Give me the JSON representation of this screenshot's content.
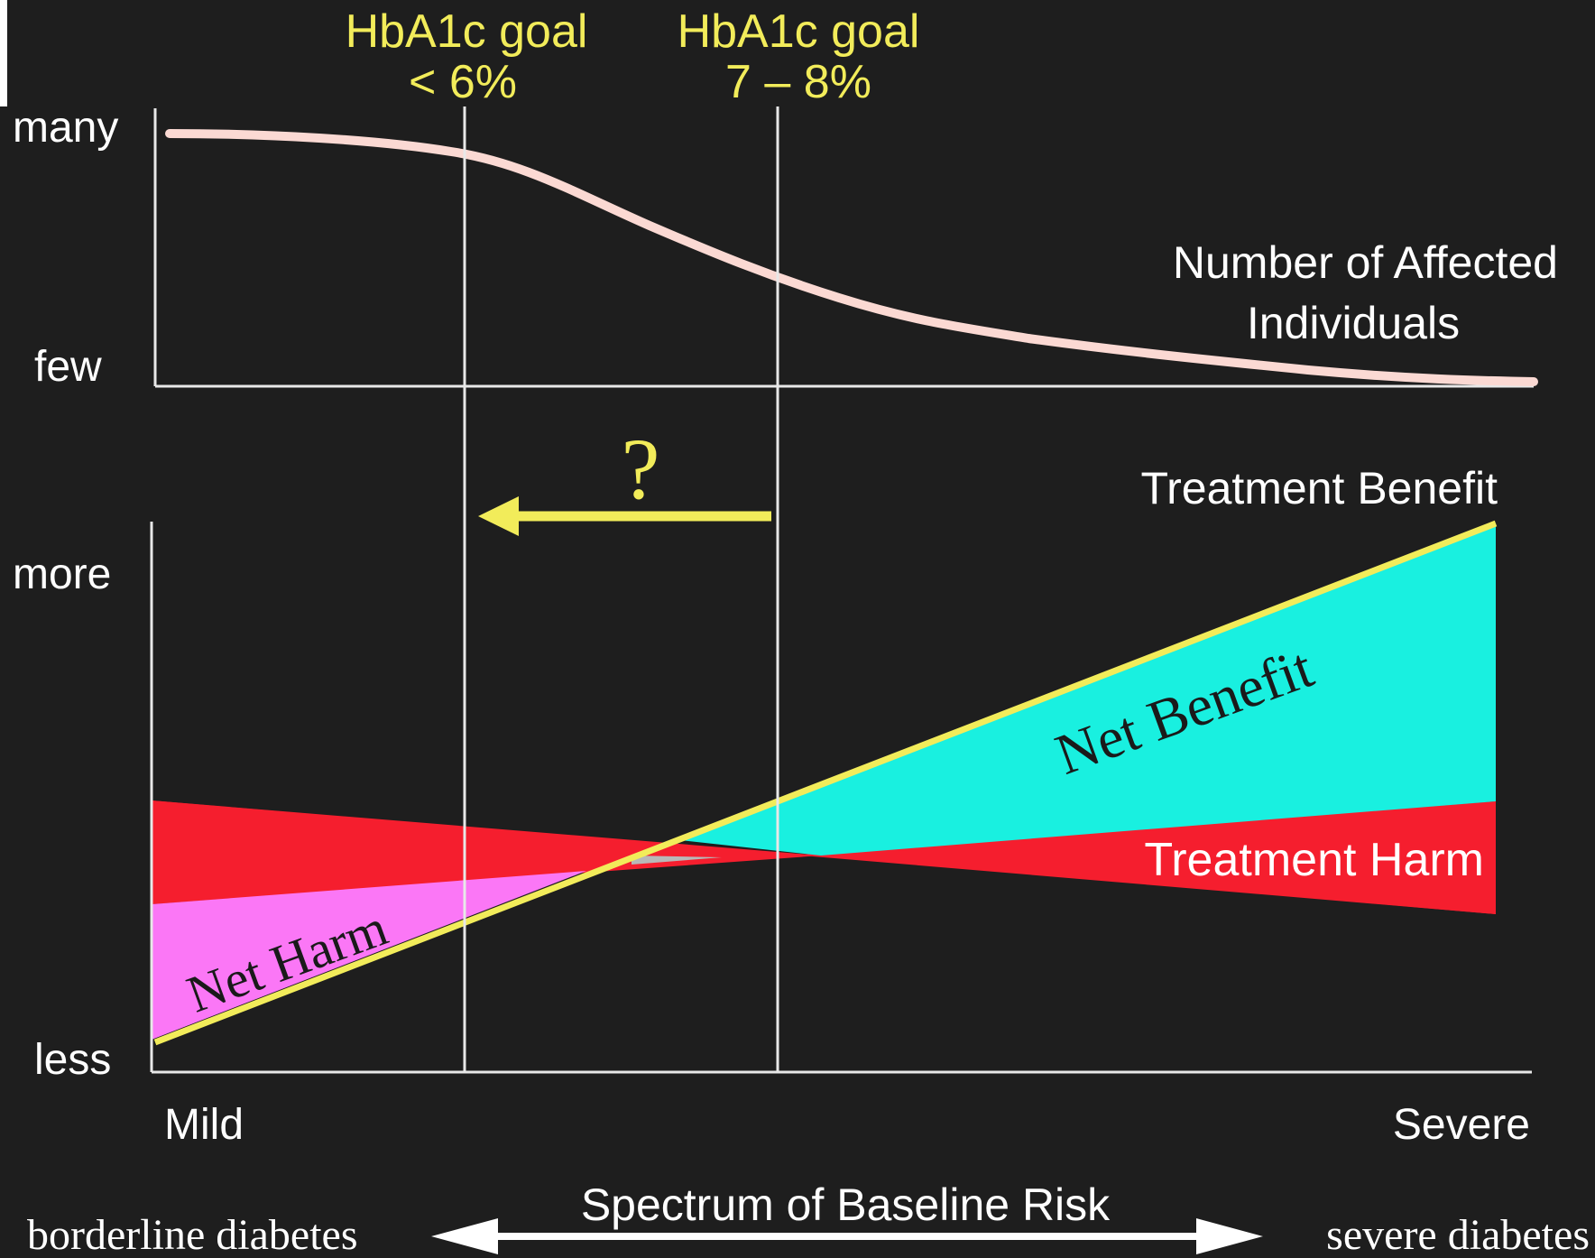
{
  "goals": {
    "goal_a_title": "HbA1c goal",
    "goal_a_value": "< 6%",
    "goal_b_title": "HbA1c goal",
    "goal_b_value": "7 – 8%"
  },
  "top_panel": {
    "y_high": "many",
    "y_low": "few",
    "curve_label_line1": "Number of Affected",
    "curve_label_line2": "Individuals"
  },
  "middle": {
    "question_mark": "?"
  },
  "bottom_panel": {
    "y_high": "more",
    "y_low": "less",
    "benefit_label": "Treatment Benefit",
    "harm_label": "Treatment Harm",
    "net_benefit_label": "Net Benefit",
    "net_harm_label": "Net Harm"
  },
  "x_axis": {
    "left": "Mild",
    "right": "Severe",
    "title": "Spectrum of Baseline Risk",
    "left_note": "borderline diabetes",
    "right_note": "severe diabetes"
  },
  "colors": {
    "background": "#1e1e1e",
    "curve": "#fbd9d3",
    "benefit_line": "#f2ec5a",
    "net_benefit": "#19f0e0",
    "harm": "#f51e2e",
    "net_harm": "#fb77f6",
    "axis": "#e8e8e8",
    "goal_text": "#f2ec5a",
    "arrow": "#f2ec5a"
  }
}
